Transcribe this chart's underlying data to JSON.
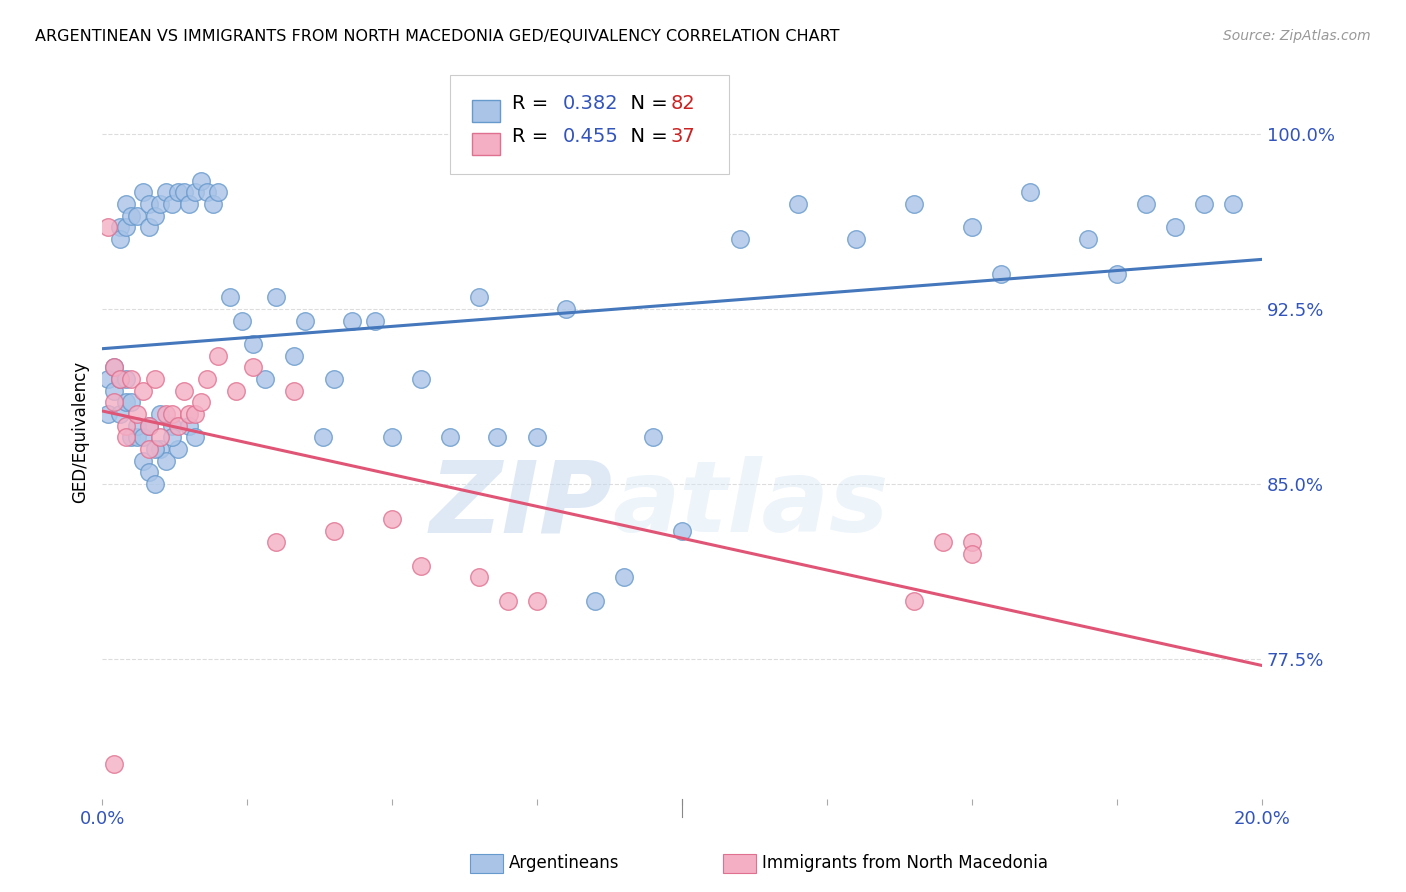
{
  "title": "ARGENTINEAN VS IMMIGRANTS FROM NORTH MACEDONIA GED/EQUIVALENCY CORRELATION CHART",
  "source": "Source: ZipAtlas.com",
  "ylabel": "GED/Equivalency",
  "ylabel_ticks": [
    "77.5%",
    "85.0%",
    "92.5%",
    "100.0%"
  ],
  "ylabel_vals": [
    0.775,
    0.85,
    0.925,
    1.0
  ],
  "xmin": 0.0,
  "xmax": 0.2,
  "ymin": 0.715,
  "ymax": 1.03,
  "blue_fill": "#aac4e8",
  "pink_fill": "#f4afc4",
  "blue_edge": "#6699cc",
  "pink_edge": "#e07090",
  "blue_line": "#4477bb",
  "pink_line": "#e05575",
  "text_color": "#3355bb",
  "r1_color": "#3355bb",
  "n1_color": "#cc2222",
  "r2_color": "#3355bb",
  "n2_color": "#cc2222",
  "blue_points_x": [
    0.001,
    0.001,
    0.002,
    0.002,
    0.003,
    0.003,
    0.003,
    0.004,
    0.004,
    0.005,
    0.005,
    0.006,
    0.006,
    0.007,
    0.007,
    0.008,
    0.008,
    0.008,
    0.009,
    0.009,
    0.01,
    0.01,
    0.011,
    0.011,
    0.012,
    0.012,
    0.013,
    0.013,
    0.014,
    0.015,
    0.015,
    0.016,
    0.016,
    0.017,
    0.018,
    0.019,
    0.02,
    0.022,
    0.024,
    0.026,
    0.028,
    0.03,
    0.033,
    0.035,
    0.038,
    0.04,
    0.043,
    0.047,
    0.05,
    0.055,
    0.06,
    0.065,
    0.068,
    0.075,
    0.08,
    0.085,
    0.09,
    0.095,
    0.1,
    0.11,
    0.12,
    0.13,
    0.14,
    0.15,
    0.155,
    0.16,
    0.17,
    0.175,
    0.18,
    0.185,
    0.19,
    0.195,
    0.003,
    0.004,
    0.004,
    0.005,
    0.006,
    0.007,
    0.008,
    0.009,
    0.01,
    0.012
  ],
  "blue_points_y": [
    0.895,
    0.88,
    0.9,
    0.89,
    0.96,
    0.955,
    0.88,
    0.96,
    0.97,
    0.965,
    0.87,
    0.965,
    0.87,
    0.975,
    0.86,
    0.96,
    0.97,
    0.855,
    0.965,
    0.85,
    0.97,
    0.865,
    0.975,
    0.86,
    0.97,
    0.875,
    0.975,
    0.865,
    0.975,
    0.97,
    0.875,
    0.975,
    0.87,
    0.98,
    0.975,
    0.97,
    0.975,
    0.93,
    0.92,
    0.91,
    0.895,
    0.93,
    0.905,
    0.92,
    0.87,
    0.895,
    0.92,
    0.92,
    0.87,
    0.895,
    0.87,
    0.93,
    0.87,
    0.87,
    0.925,
    0.8,
    0.81,
    0.87,
    0.83,
    0.955,
    0.97,
    0.955,
    0.97,
    0.96,
    0.94,
    0.975,
    0.955,
    0.94,
    0.97,
    0.96,
    0.97,
    0.97,
    0.895,
    0.895,
    0.885,
    0.885,
    0.875,
    0.87,
    0.875,
    0.865,
    0.88,
    0.87
  ],
  "pink_points_x": [
    0.001,
    0.002,
    0.002,
    0.003,
    0.004,
    0.004,
    0.005,
    0.006,
    0.007,
    0.008,
    0.008,
    0.009,
    0.01,
    0.011,
    0.012,
    0.013,
    0.014,
    0.015,
    0.016,
    0.017,
    0.018,
    0.02,
    0.023,
    0.026,
    0.03,
    0.033,
    0.04,
    0.05,
    0.055,
    0.065,
    0.07,
    0.075,
    0.14,
    0.145,
    0.15,
    0.15,
    0.002
  ],
  "pink_points_y": [
    0.96,
    0.9,
    0.885,
    0.895,
    0.875,
    0.87,
    0.895,
    0.88,
    0.89,
    0.865,
    0.875,
    0.895,
    0.87,
    0.88,
    0.88,
    0.875,
    0.89,
    0.88,
    0.88,
    0.885,
    0.895,
    0.905,
    0.89,
    0.9,
    0.825,
    0.89,
    0.83,
    0.835,
    0.815,
    0.81,
    0.8,
    0.8,
    0.8,
    0.825,
    0.825,
    0.82,
    0.73
  ],
  "watermark_zip": "ZIP",
  "watermark_atlas": "atlas",
  "bottom_legend_blue": "Argentineans",
  "bottom_legend_pink": "Immigrants from North Macedonia"
}
